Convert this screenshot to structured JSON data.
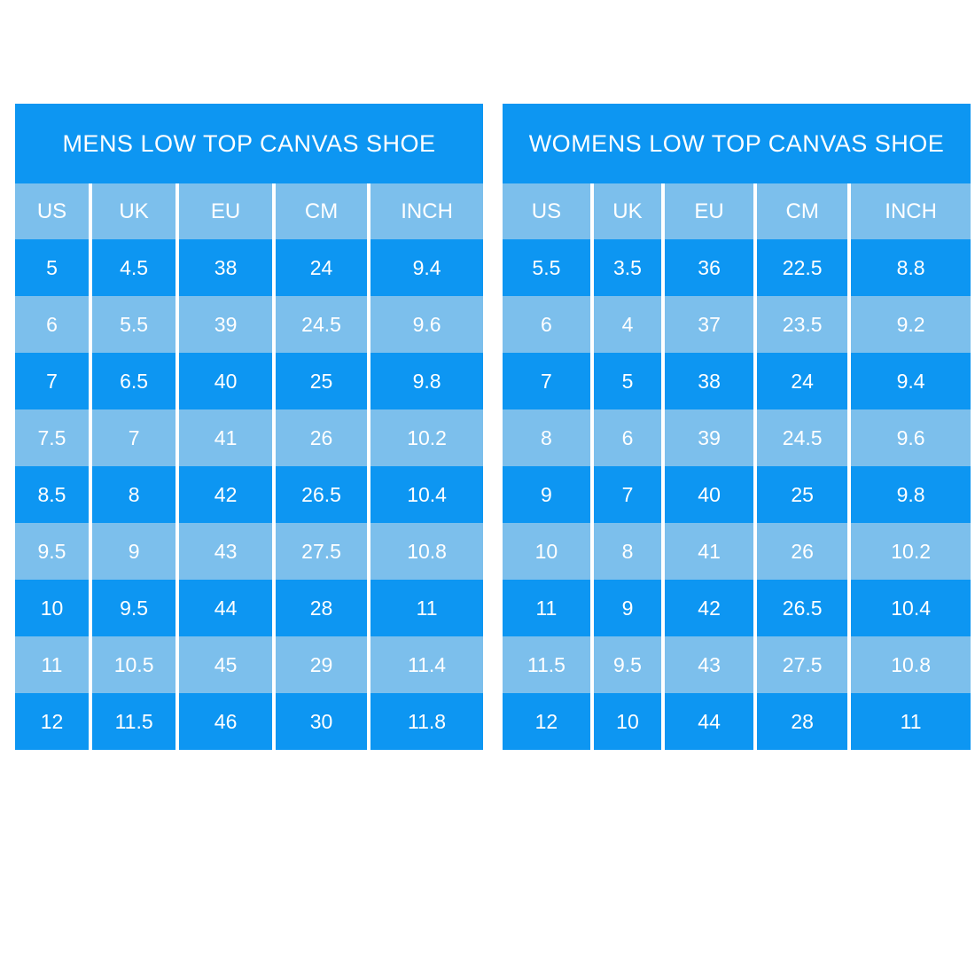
{
  "colors": {
    "primary_blue": "#0D96F2",
    "light_blue": "#7CBFEC",
    "text_white": "#FFFFFF",
    "background": "#FFFFFF"
  },
  "chart_data": [
    {
      "type": "table",
      "title": "MENS LOW TOP CANVAS SHOE",
      "columns": [
        "US",
        "UK",
        "EU",
        "CM",
        "INCH"
      ],
      "rows": [
        [
          "5",
          "4.5",
          "38",
          "24",
          "9.4"
        ],
        [
          "6",
          "5.5",
          "39",
          "24.5",
          "9.6"
        ],
        [
          "7",
          "6.5",
          "40",
          "25",
          "9.8"
        ],
        [
          "7.5",
          "7",
          "41",
          "26",
          "10.2"
        ],
        [
          "8.5",
          "8",
          "42",
          "26.5",
          "10.4"
        ],
        [
          "9.5",
          "9",
          "43",
          "27.5",
          "10.8"
        ],
        [
          "10",
          "9.5",
          "44",
          "28",
          "11"
        ],
        [
          "11",
          "10.5",
          "45",
          "29",
          "11.4"
        ],
        [
          "12",
          "11.5",
          "46",
          "30",
          "11.8"
        ]
      ],
      "layout_hints": {
        "row_striping": [
          "dark_blue",
          "light_blue"
        ],
        "header_background": "light_blue",
        "title_background": "dark_blue",
        "grid": "white vertical separators only"
      }
    },
    {
      "type": "table",
      "title": "WOMENS LOW TOP CANVAS SHOE",
      "columns": [
        "US",
        "UK",
        "EU",
        "CM",
        "INCH"
      ],
      "rows": [
        [
          "5.5",
          "3.5",
          "36",
          "22.5",
          "8.8"
        ],
        [
          "6",
          "4",
          "37",
          "23.5",
          "9.2"
        ],
        [
          "7",
          "5",
          "38",
          "24",
          "9.4"
        ],
        [
          "8",
          "6",
          "39",
          "24.5",
          "9.6"
        ],
        [
          "9",
          "7",
          "40",
          "25",
          "9.8"
        ],
        [
          "10",
          "8",
          "41",
          "26",
          "10.2"
        ],
        [
          "11",
          "9",
          "42",
          "26.5",
          "10.4"
        ],
        [
          "11.5",
          "9.5",
          "43",
          "27.5",
          "10.8"
        ],
        [
          "12",
          "10",
          "44",
          "28",
          "11"
        ]
      ],
      "layout_hints": {
        "row_striping": [
          "dark_blue",
          "light_blue"
        ],
        "header_background": "light_blue",
        "title_background": "dark_blue",
        "grid": "white vertical separators only"
      }
    }
  ]
}
